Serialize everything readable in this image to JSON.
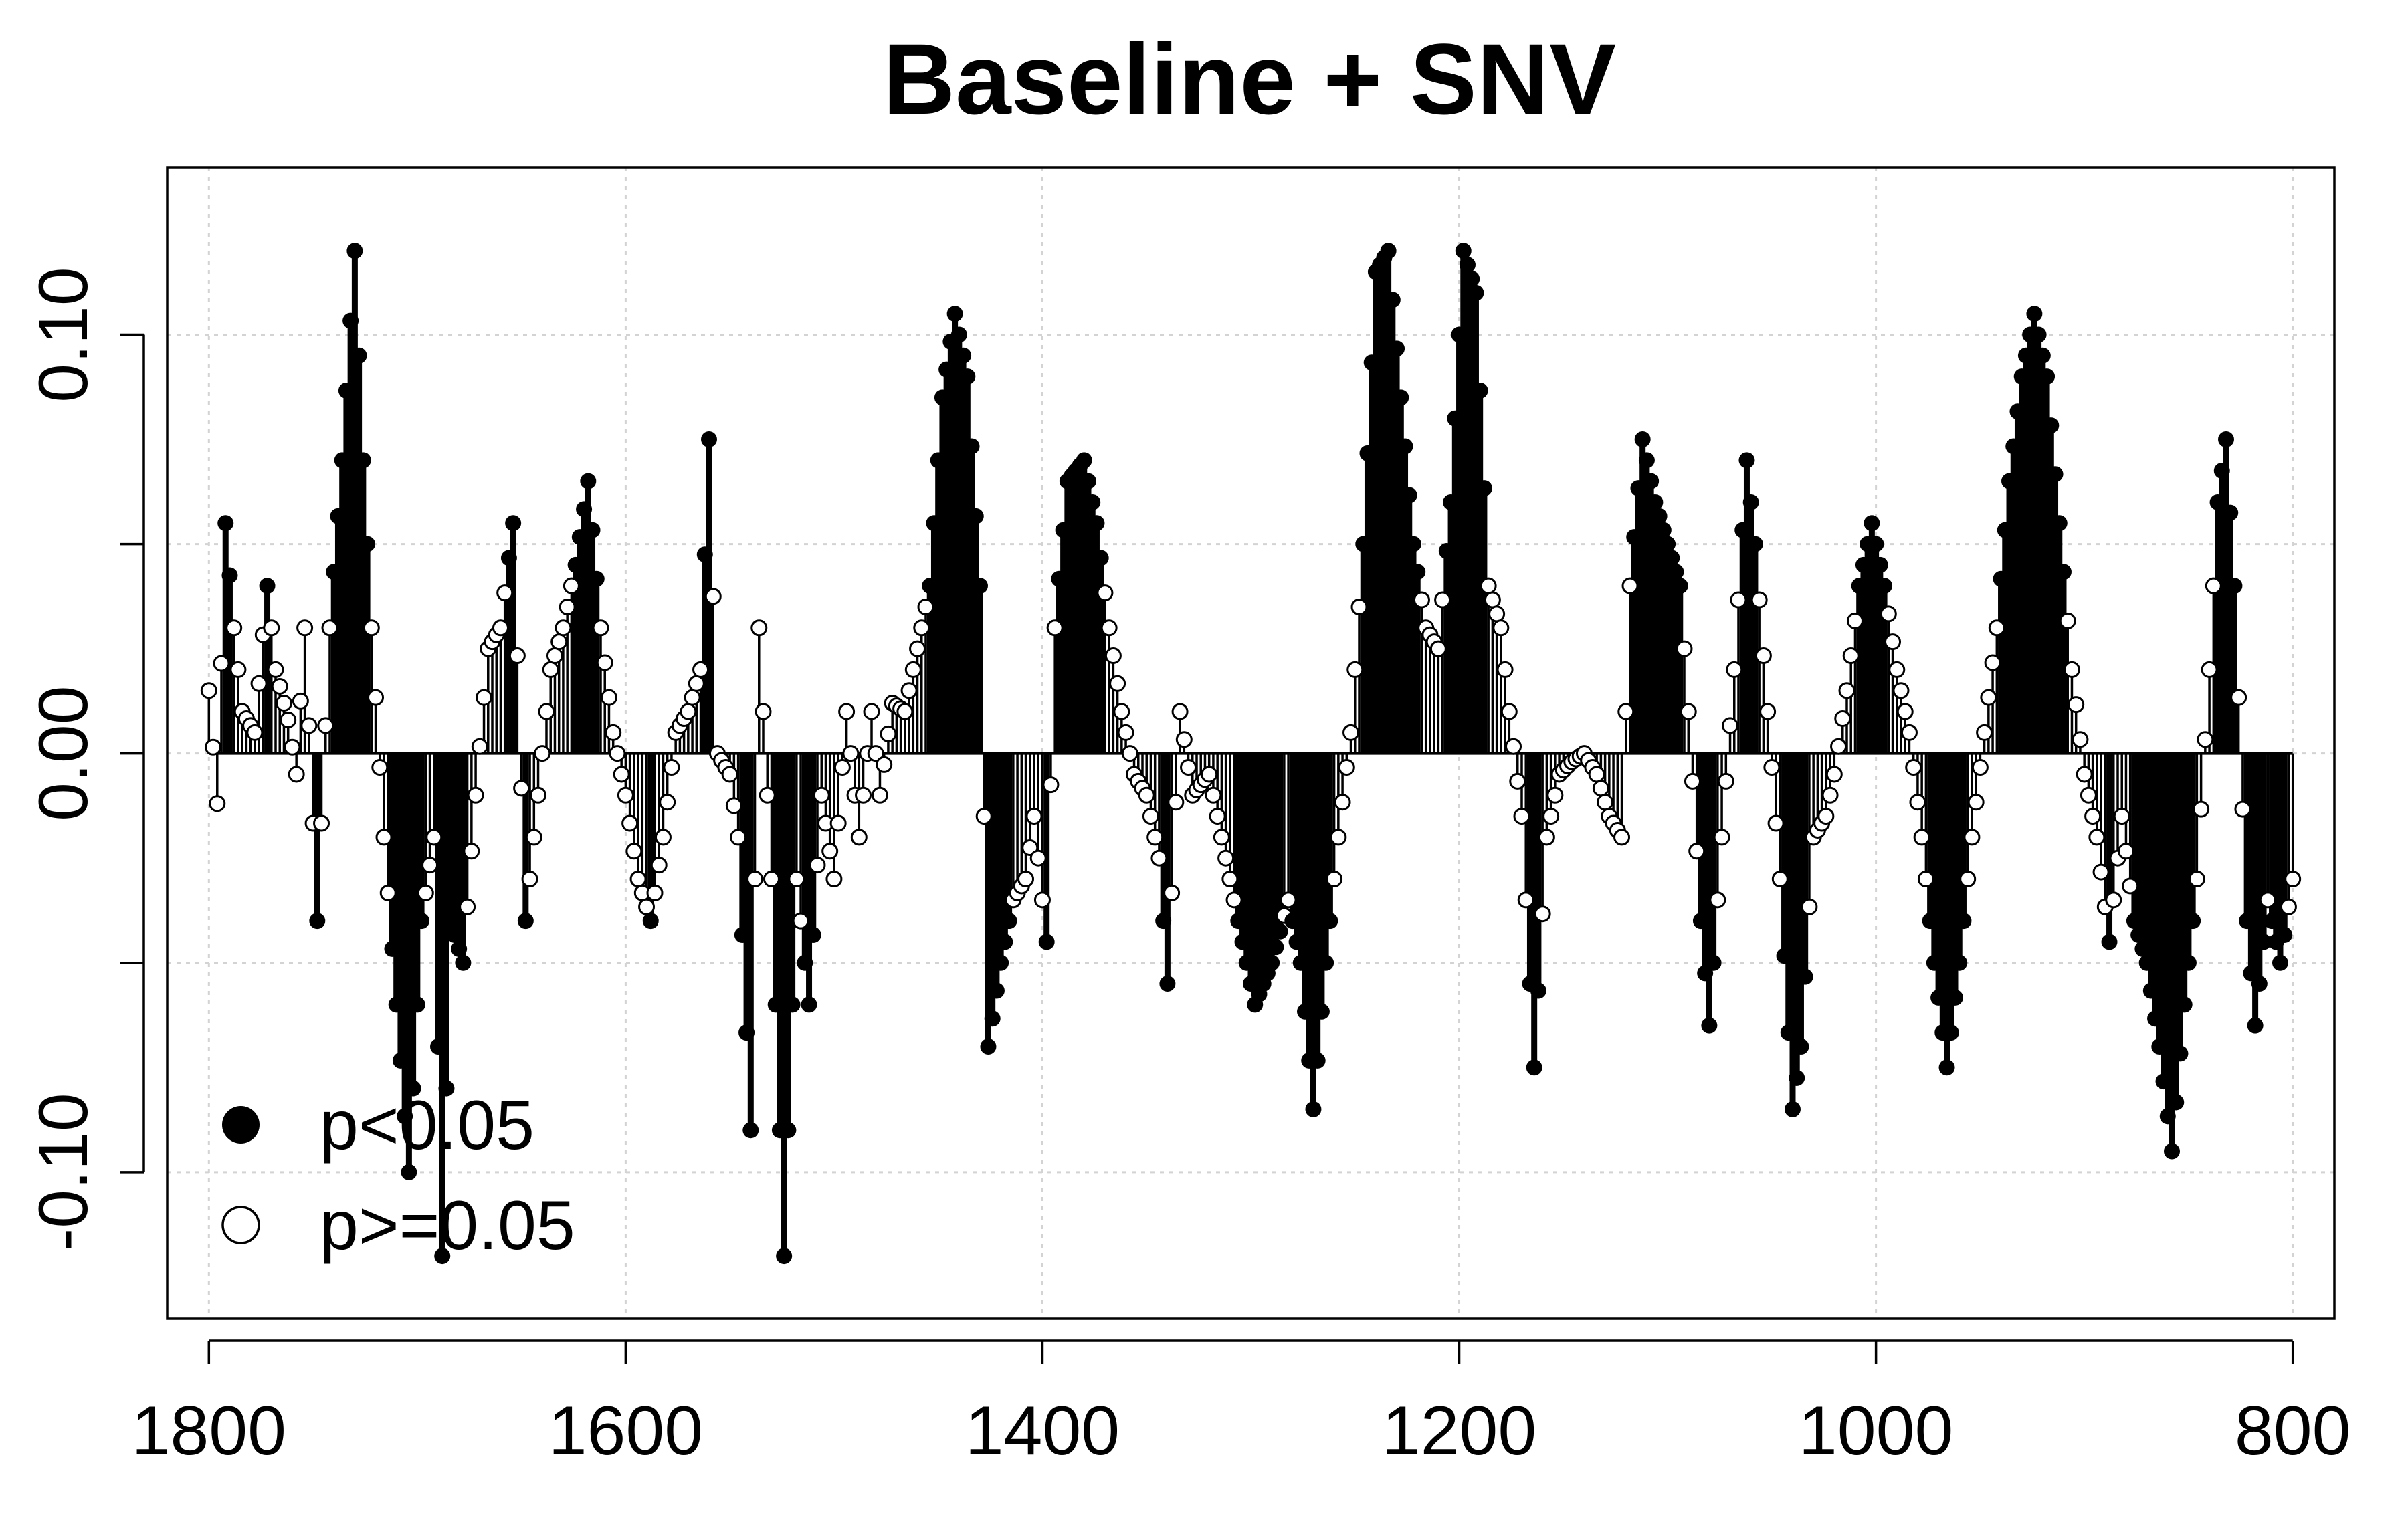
{
  "chart_data": {
    "type": "scatter",
    "subtype": "stem-plot (lollipop) of loadings vs wavenumber",
    "title": "Baseline + SNV",
    "xlabel": "",
    "ylabel": "",
    "x_reversed": true,
    "xlim": [
      1820,
      780
    ],
    "ylim": [
      -0.135,
      0.14
    ],
    "x_ticks": [
      1800,
      1600,
      1400,
      1200,
      1000,
      800
    ],
    "x_tick_labels": [
      "1800",
      "1600",
      "1400",
      "1200",
      "1000",
      "800"
    ],
    "y_ticks": [
      0.1,
      0.05,
      0.0,
      -0.05,
      -0.1
    ],
    "y_tick_labels": [
      "0.10",
      "",
      "0.00",
      "",
      "-0.10"
    ],
    "grid": true,
    "grid_style": "dotted light gray",
    "legend": {
      "placement": "bottom-left",
      "entries": [
        {
          "label": "p<0.05",
          "marker": "filled-circle"
        },
        {
          "label": "p>=0.05",
          "marker": "open-circle"
        }
      ]
    },
    "series_shape": {
      "x_start": 1800,
      "x_end": 800,
      "step": 2,
      "knots": [
        [
          1800,
          0.015
        ],
        [
          1796,
          -0.012
        ],
        [
          1792,
          0.055
        ],
        [
          1788,
          0.03
        ],
        [
          1784,
          0.01
        ],
        [
          1778,
          0.005
        ],
        [
          1772,
          0.04
        ],
        [
          1768,
          0.02
        ],
        [
          1762,
          0.008
        ],
        [
          1758,
          -0.005
        ],
        [
          1754,
          0.03
        ],
        [
          1748,
          -0.04
        ],
        [
          1742,
          0.03
        ],
        [
          1736,
          0.07
        ],
        [
          1730,
          0.12
        ],
        [
          1726,
          0.07
        ],
        [
          1722,
          0.03
        ],
        [
          1716,
          -0.02
        ],
        [
          1710,
          -0.06
        ],
        [
          1704,
          -0.1
        ],
        [
          1698,
          -0.04
        ],
        [
          1692,
          -0.02
        ],
        [
          1688,
          -0.12
        ],
        [
          1684,
          -0.04
        ],
        [
          1678,
          -0.05
        ],
        [
          1672,
          -0.01
        ],
        [
          1666,
          0.025
        ],
        [
          1660,
          0.03
        ],
        [
          1654,
          0.055
        ],
        [
          1648,
          -0.04
        ],
        [
          1642,
          -0.01
        ],
        [
          1636,
          0.02
        ],
        [
          1630,
          0.03
        ],
        [
          1624,
          0.045
        ],
        [
          1618,
          0.065
        ],
        [
          1612,
          0.03
        ],
        [
          1606,
          0.005
        ],
        [
          1600,
          -0.01
        ],
        [
          1594,
          -0.03
        ],
        [
          1588,
          -0.04
        ],
        [
          1582,
          -0.02
        ],
        [
          1576,
          0.005
        ],
        [
          1570,
          0.01
        ],
        [
          1564,
          0.02
        ],
        [
          1560,
          0.075
        ],
        [
          1556,
          0.0
        ],
        [
          1550,
          -0.005
        ],
        [
          1546,
          -0.02
        ],
        [
          1540,
          -0.09
        ],
        [
          1536,
          0.03
        ],
        [
          1530,
          -0.03
        ],
        [
          1524,
          -0.12
        ],
        [
          1518,
          -0.03
        ],
        [
          1512,
          -0.06
        ],
        [
          1506,
          -0.01
        ],
        [
          1500,
          -0.03
        ],
        [
          1494,
          0.01
        ],
        [
          1488,
          -0.02
        ],
        [
          1482,
          0.01
        ],
        [
          1478,
          -0.01
        ],
        [
          1472,
          0.012
        ],
        [
          1466,
          0.01
        ],
        [
          1460,
          0.025
        ],
        [
          1454,
          0.04
        ],
        [
          1448,
          0.085
        ],
        [
          1442,
          0.105
        ],
        [
          1436,
          0.09
        ],
        [
          1430,
          0.04
        ],
        [
          1426,
          -0.07
        ],
        [
          1420,
          -0.05
        ],
        [
          1414,
          -0.035
        ],
        [
          1408,
          -0.03
        ],
        [
          1404,
          -0.015
        ],
        [
          1398,
          -0.045
        ],
        [
          1394,
          0.03
        ],
        [
          1388,
          0.065
        ],
        [
          1380,
          0.07
        ],
        [
          1374,
          0.055
        ],
        [
          1368,
          0.03
        ],
        [
          1362,
          0.01
        ],
        [
          1356,
          -0.005
        ],
        [
          1350,
          -0.01
        ],
        [
          1344,
          -0.025
        ],
        [
          1340,
          -0.055
        ],
        [
          1334,
          0.01
        ],
        [
          1328,
          -0.01
        ],
        [
          1320,
          -0.005
        ],
        [
          1314,
          -0.02
        ],
        [
          1306,
          -0.04
        ],
        [
          1298,
          -0.06
        ],
        [
          1290,
          -0.05
        ],
        [
          1282,
          -0.035
        ],
        [
          1276,
          -0.05
        ],
        [
          1270,
          -0.085
        ],
        [
          1264,
          -0.05
        ],
        [
          1258,
          -0.02
        ],
        [
          1252,
          0.005
        ],
        [
          1246,
          0.05
        ],
        [
          1240,
          0.115
        ],
        [
          1234,
          0.12
        ],
        [
          1228,
          0.085
        ],
        [
          1222,
          0.05
        ],
        [
          1216,
          0.03
        ],
        [
          1210,
          0.025
        ],
        [
          1204,
          0.06
        ],
        [
          1198,
          0.12
        ],
        [
          1192,
          0.11
        ],
        [
          1186,
          0.04
        ],
        [
          1180,
          0.03
        ],
        [
          1176,
          0.01
        ],
        [
          1170,
          -0.015
        ],
        [
          1164,
          -0.075
        ],
        [
          1158,
          -0.02
        ],
        [
          1152,
          -0.005
        ],
        [
          1146,
          -0.002
        ],
        [
          1140,
          0.0
        ],
        [
          1134,
          -0.005
        ],
        [
          1128,
          -0.015
        ],
        [
          1122,
          -0.02
        ],
        [
          1118,
          0.04
        ],
        [
          1112,
          0.075
        ],
        [
          1106,
          0.06
        ],
        [
          1100,
          0.05
        ],
        [
          1094,
          0.04
        ],
        [
          1090,
          0.01
        ],
        [
          1084,
          -0.04
        ],
        [
          1080,
          -0.065
        ],
        [
          1074,
          -0.02
        ],
        [
          1068,
          0.02
        ],
        [
          1062,
          0.07
        ],
        [
          1058,
          0.05
        ],
        [
          1052,
          0.01
        ],
        [
          1046,
          -0.03
        ],
        [
          1040,
          -0.085
        ],
        [
          1036,
          -0.07
        ],
        [
          1030,
          -0.02
        ],
        [
          1024,
          -0.015
        ],
        [
          1020,
          -0.005
        ],
        [
          1014,
          0.015
        ],
        [
          1008,
          0.04
        ],
        [
          1002,
          0.055
        ],
        [
          996,
          0.04
        ],
        [
          990,
          0.02
        ],
        [
          984,
          0.005
        ],
        [
          978,
          -0.02
        ],
        [
          972,
          -0.05
        ],
        [
          966,
          -0.075
        ],
        [
          960,
          -0.05
        ],
        [
          954,
          -0.02
        ],
        [
          948,
          0.005
        ],
        [
          942,
          0.03
        ],
        [
          936,
          0.065
        ],
        [
          930,
          0.09
        ],
        [
          924,
          0.105
        ],
        [
          918,
          0.09
        ],
        [
          912,
          0.055
        ],
        [
          906,
          0.02
        ],
        [
          900,
          -0.005
        ],
        [
          894,
          -0.02
        ],
        [
          888,
          -0.045
        ],
        [
          882,
          -0.015
        ],
        [
          876,
          -0.04
        ],
        [
          870,
          -0.05
        ],
        [
          864,
          -0.07
        ],
        [
          858,
          -0.095
        ],
        [
          852,
          -0.06
        ],
        [
          846,
          -0.03
        ],
        [
          840,
          0.02
        ],
        [
          836,
          0.06
        ],
        [
          832,
          0.075
        ],
        [
          828,
          0.04
        ],
        [
          822,
          -0.04
        ],
        [
          818,
          -0.065
        ],
        [
          812,
          -0.035
        ],
        [
          806,
          -0.05
        ],
        [
          800,
          -0.03
        ]
      ],
      "significance": "points with |value| >= 0.04 drawn filled (p<0.05), others open (p>=0.05)"
    }
  },
  "colors": {
    "marker": "#000000",
    "grid": "#d3d3d3",
    "background": "#ffffff"
  }
}
